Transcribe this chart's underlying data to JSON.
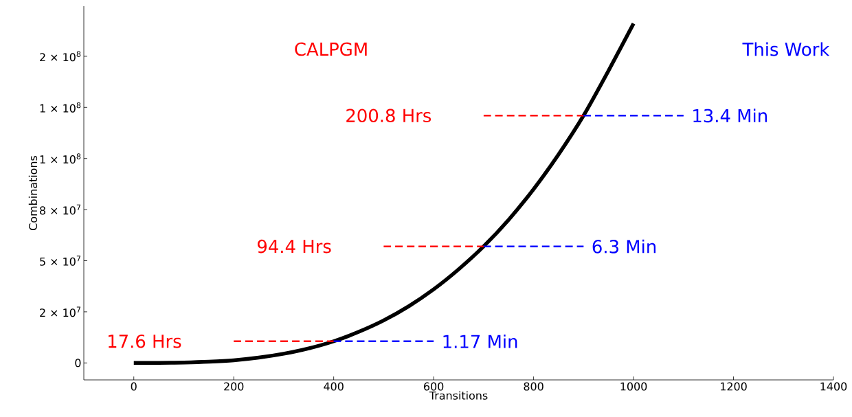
{
  "chart_data": {
    "type": "line",
    "xlabel": "Transitions",
    "ylabel": "Combinations",
    "xlim": [
      -100,
      1400
    ],
    "ylim": [
      -8300000,
      174500000
    ],
    "xticks": [
      0,
      200,
      400,
      600,
      800,
      1000,
      1200,
      1400
    ],
    "yticks": [
      {
        "value": 0,
        "label": "0"
      },
      {
        "value": 25000000,
        "label": "2 × 10$^{7}$"
      },
      {
        "value": 50000000,
        "label": "5 × 10$^{7}$"
      },
      {
        "value": 75000000,
        "label": "8 × 10$^{7}$"
      },
      {
        "value": 100000000,
        "label": "1 × 10$^{8}$"
      },
      {
        "value": 125000000,
        "label": "1 × 10$^{8}$"
      },
      {
        "value": 150000000,
        "label": "2 × 10$^{8}$"
      }
    ],
    "series": [
      {
        "color": "#000000",
        "line_style": "solid",
        "x": [
          0,
          50,
          100,
          150,
          200,
          250,
          300,
          350,
          400,
          450,
          500,
          550,
          600,
          650,
          700,
          750,
          800,
          850,
          900,
          950,
          1000
        ],
        "values": [
          0,
          0,
          200000,
          600000,
          1300000,
          2600000,
          4500000,
          7100000,
          10600000,
          15200000,
          20800000,
          27700000,
          36000000,
          45800000,
          57000000,
          70000000,
          85000000,
          102000000,
          121000000,
          143000000,
          166000000
        ]
      },
      {
        "color": "#ff0000",
        "line_style": "dashed",
        "x": [
          200,
          400
        ],
        "values": [
          10600000,
          10600000
        ]
      },
      {
        "color": "#ff0000",
        "line_style": "dashed",
        "x": [
          500,
          700
        ],
        "values": [
          57000000,
          57000000
        ]
      },
      {
        "color": "#ff0000",
        "line_style": "dashed",
        "x": [
          700,
          900
        ],
        "values": [
          121000000,
          121000000
        ]
      },
      {
        "color": "#0000ff",
        "line_style": "dashed",
        "x": [
          400,
          600
        ],
        "values": [
          10600000,
          10600000
        ]
      },
      {
        "color": "#0000ff",
        "line_style": "dashed",
        "x": [
          700,
          900
        ],
        "values": [
          57000000,
          57000000
        ]
      },
      {
        "color": "#0000ff",
        "line_style": "dashed",
        "x": [
          900,
          1100
        ],
        "values": [
          121000000,
          121000000
        ]
      }
    ],
    "annotations": [
      "CALPGM",
      "This Work",
      {
        "text": "17.6 Hrs",
        "x": 200,
        "y": 10600000
      },
      {
        "text": "94.4 Hrs",
        "x": 500,
        "y": 57000000
      },
      {
        "text": "200.8 Hrs",
        "x": 700,
        "y": 121000000
      },
      {
        "text": "1.17 Min",
        "x": 600,
        "y": 10600000
      },
      {
        "text": "6.3 Min",
        "x": 900,
        "y": 57000000
      },
      {
        "text": "13.4 Min",
        "x": 1100,
        "y": 121000000
      }
    ]
  }
}
